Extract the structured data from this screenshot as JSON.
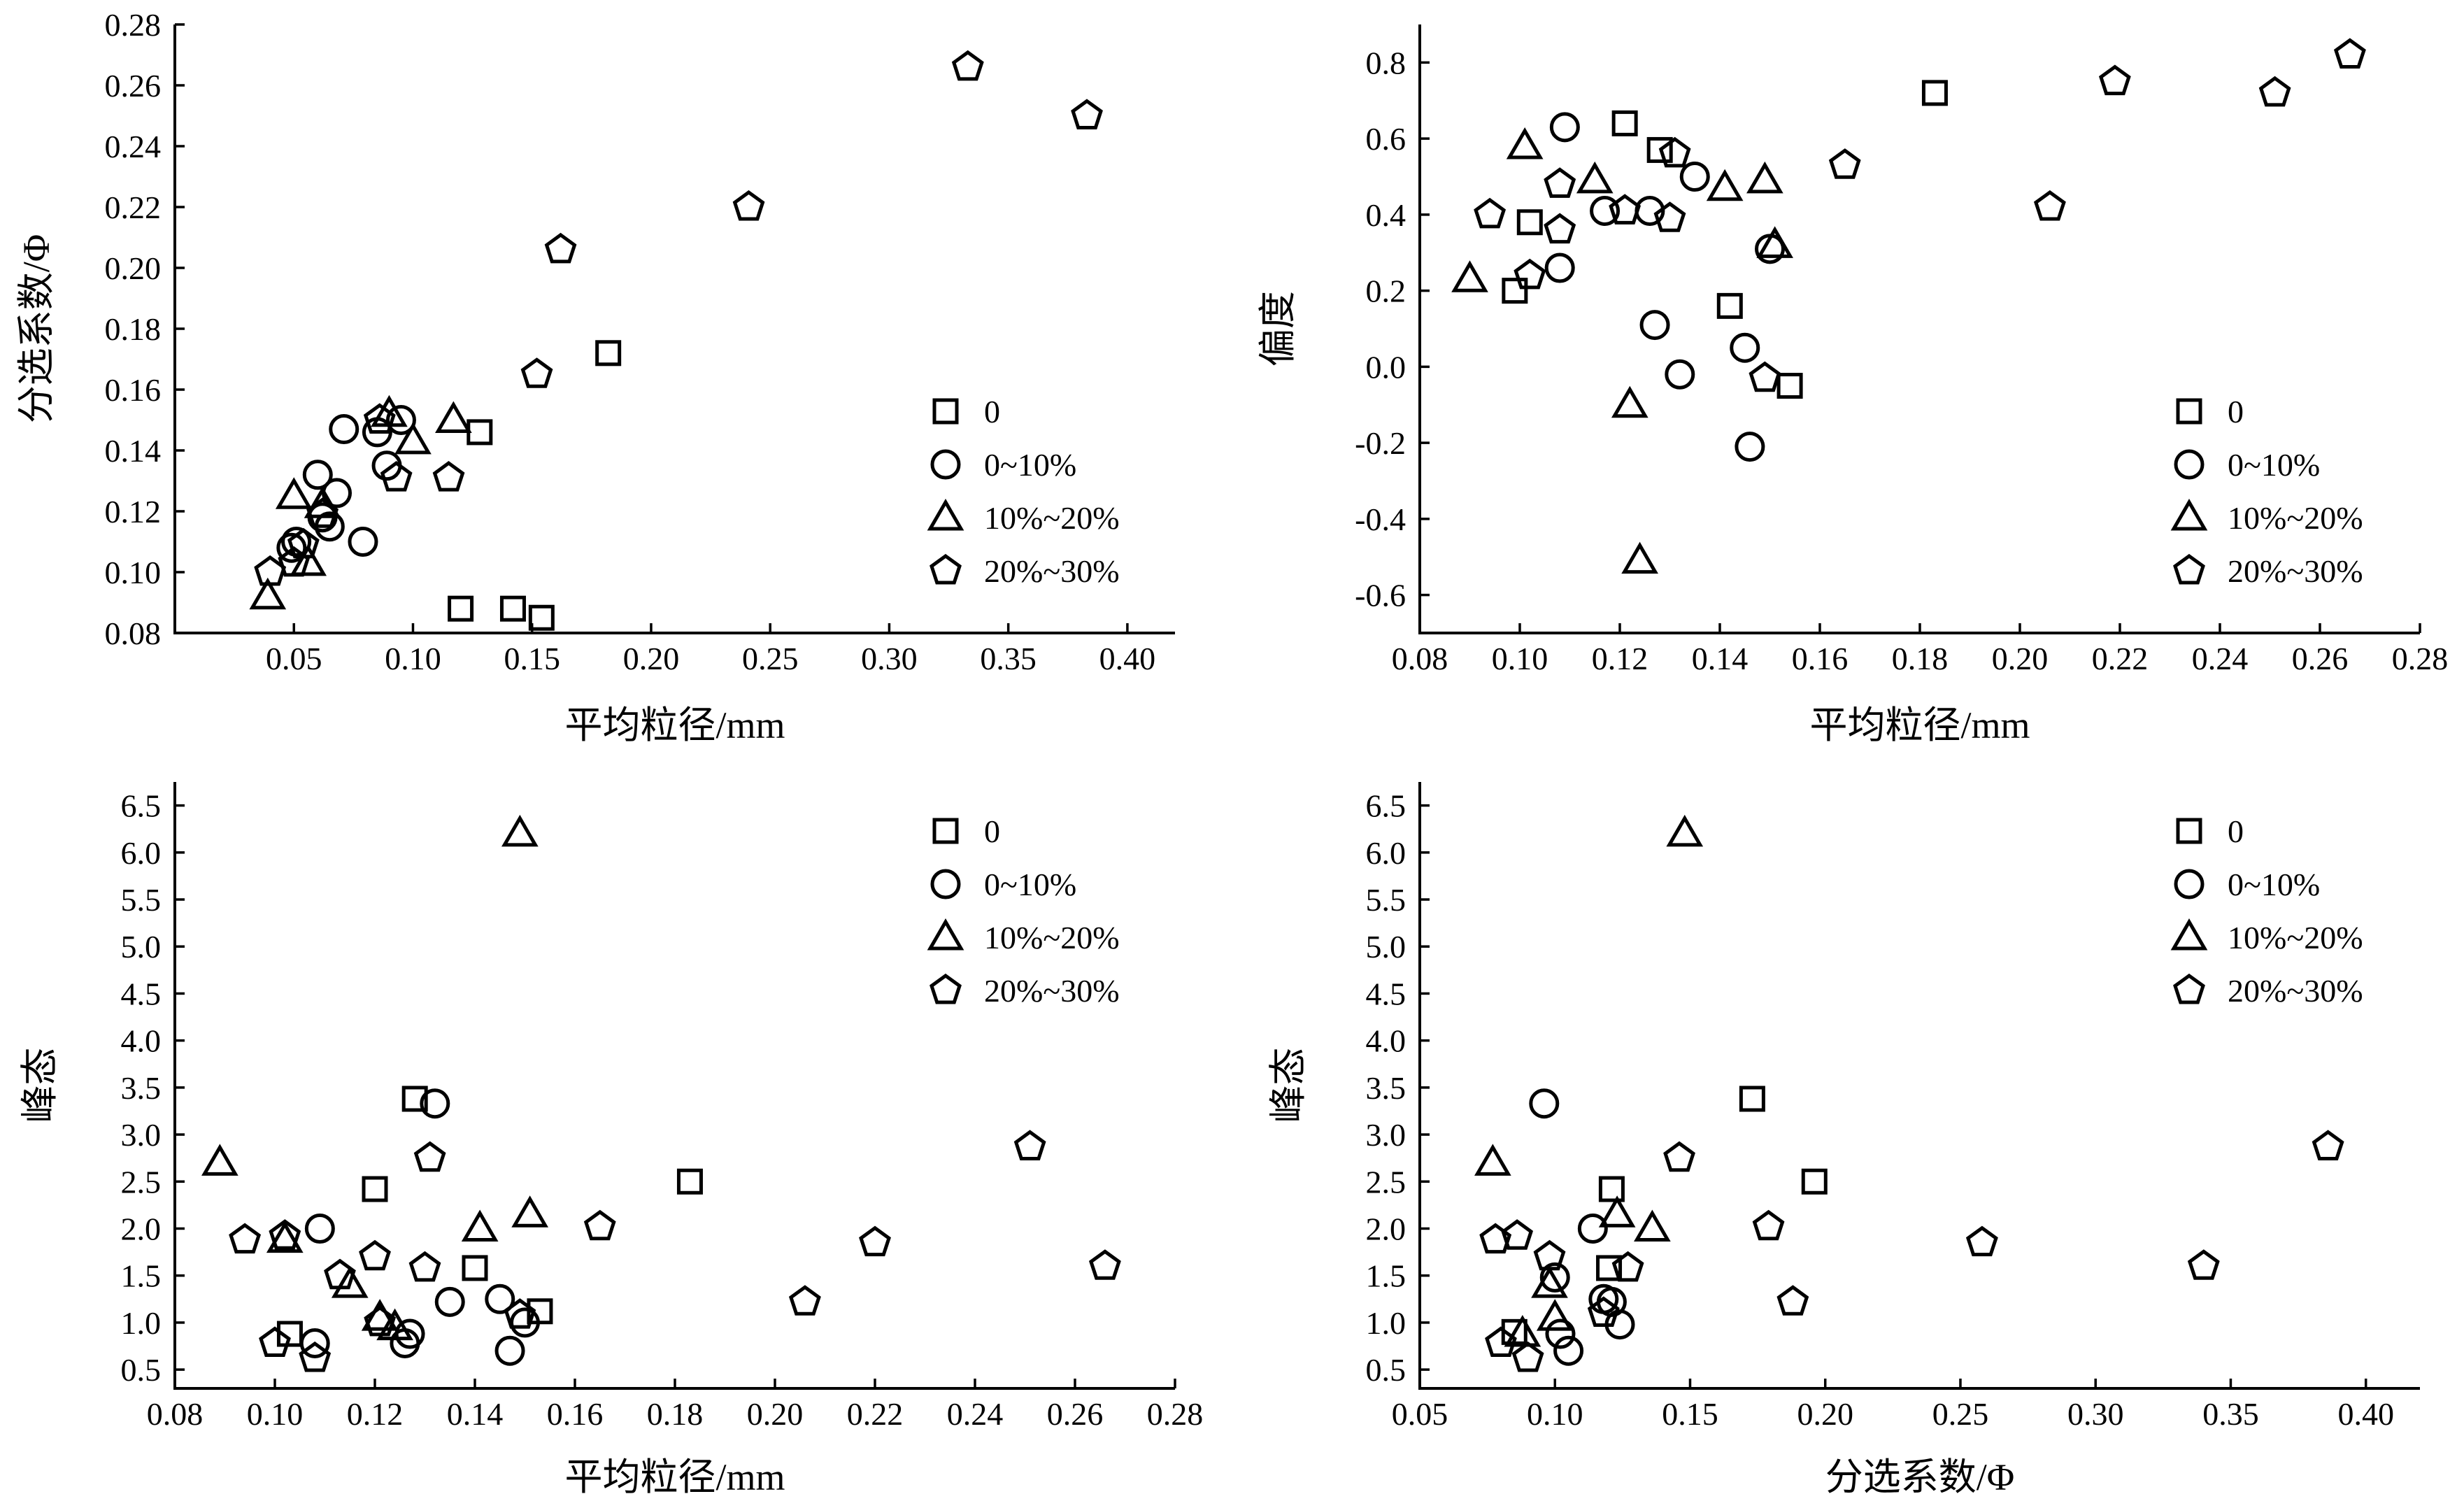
{
  "legend": [
    {
      "key": "s0",
      "label": "0",
      "marker": "square"
    },
    {
      "key": "s1",
      "label": "0~10%",
      "marker": "circle"
    },
    {
      "key": "s2",
      "label": "10%~20%",
      "marker": "triangle"
    },
    {
      "key": "s3",
      "label": "20%~30%",
      "marker": "pentagon"
    }
  ],
  "chart_data": [
    {
      "type": "scatter",
      "xlabel": "平均粒径/mm",
      "ylabel": "分选系数/Φ",
      "xlim": [
        0.0,
        0.42
      ],
      "ylim": [
        0.08,
        0.28
      ],
      "xticks": [
        "0.05",
        "0.10",
        "0.15",
        "0.20",
        "0.25",
        "0.30",
        "0.35",
        "0.40"
      ],
      "yticks": [
        "0.08",
        "0.10",
        "0.12",
        "0.14",
        "0.16",
        "0.18",
        "0.20",
        "0.22",
        "0.24",
        "0.26",
        "0.28"
      ],
      "legend_position": "right",
      "series": [
        {
          "key": "s0",
          "points": [
            [
              0.12,
              0.088
            ],
            [
              0.142,
              0.088
            ],
            [
              0.154,
              0.085
            ],
            [
              0.128,
              0.146
            ],
            [
              0.182,
              0.172
            ]
          ]
        },
        {
          "key": "s1",
          "points": [
            [
              0.049,
              0.108
            ],
            [
              0.051,
              0.11
            ],
            [
              0.06,
              0.132
            ],
            [
              0.062,
              0.118
            ],
            [
              0.065,
              0.115
            ],
            [
              0.068,
              0.126
            ],
            [
              0.071,
              0.147
            ],
            [
              0.079,
              0.11
            ],
            [
              0.085,
              0.146
            ],
            [
              0.089,
              0.135
            ],
            [
              0.095,
              0.15
            ]
          ]
        },
        {
          "key": "s2",
          "points": [
            [
              0.039,
              0.092
            ],
            [
              0.05,
              0.125
            ],
            [
              0.056,
              0.103
            ],
            [
              0.062,
              0.122
            ],
            [
              0.09,
              0.152
            ],
            [
              0.1,
              0.143
            ],
            [
              0.117,
              0.15
            ]
          ]
        },
        {
          "key": "s3",
          "points": [
            [
              0.04,
              0.1
            ],
            [
              0.05,
              0.103
            ],
            [
              0.054,
              0.109
            ],
            [
              0.062,
              0.119
            ],
            [
              0.086,
              0.15
            ],
            [
              0.093,
              0.131
            ],
            [
              0.115,
              0.131
            ],
            [
              0.152,
              0.165
            ],
            [
              0.162,
              0.206
            ],
            [
              0.241,
              0.22
            ],
            [
              0.333,
              0.266
            ],
            [
              0.383,
              0.25
            ]
          ]
        }
      ]
    },
    {
      "type": "scatter",
      "xlabel": "平均粒径/mm",
      "ylabel": "偏度",
      "xlim": [
        0.08,
        0.28
      ],
      "ylim": [
        -0.7,
        0.9
      ],
      "xticks": [
        "0.08",
        "0.10",
        "0.12",
        "0.14",
        "0.16",
        "0.18",
        "0.20",
        "0.22",
        "0.24",
        "0.26",
        "0.28"
      ],
      "yticks": [
        "-0.6",
        "-0.4",
        "-0.2",
        "0.0",
        "0.2",
        "0.4",
        "0.6",
        "0.8"
      ],
      "legend_position": "right",
      "series": [
        {
          "key": "s0",
          "points": [
            [
              0.099,
              0.2
            ],
            [
              0.102,
              0.38
            ],
            [
              0.121,
              0.64
            ],
            [
              0.128,
              0.57
            ],
            [
              0.142,
              0.16
            ],
            [
              0.154,
              -0.05
            ],
            [
              0.183,
              0.72
            ]
          ]
        },
        {
          "key": "s1",
          "points": [
            [
              0.108,
              0.26
            ],
            [
              0.109,
              0.63
            ],
            [
              0.117,
              0.41
            ],
            [
              0.126,
              0.41
            ],
            [
              0.127,
              0.11
            ],
            [
              0.132,
              -0.02
            ],
            [
              0.135,
              0.5
            ],
            [
              0.145,
              0.05
            ],
            [
              0.146,
              -0.21
            ],
            [
              0.15,
              0.31
            ]
          ]
        },
        {
          "key": "s2",
          "points": [
            [
              0.09,
              0.23
            ],
            [
              0.101,
              0.58
            ],
            [
              0.115,
              0.49
            ],
            [
              0.122,
              -0.1
            ],
            [
              0.124,
              -0.51
            ],
            [
              0.141,
              0.47
            ],
            [
              0.149,
              0.49
            ],
            [
              0.151,
              0.32
            ]
          ]
        },
        {
          "key": "s3",
          "points": [
            [
              0.094,
              0.4
            ],
            [
              0.102,
              0.24
            ],
            [
              0.108,
              0.48
            ],
            [
              0.108,
              0.36
            ],
            [
              0.121,
              0.41
            ],
            [
              0.13,
              0.39
            ],
            [
              0.131,
              0.56
            ],
            [
              0.149,
              -0.03
            ],
            [
              0.165,
              0.53
            ],
            [
              0.206,
              0.42
            ],
            [
              0.219,
              0.75
            ],
            [
              0.251,
              0.72
            ],
            [
              0.266,
              0.82
            ]
          ]
        }
      ]
    },
    {
      "type": "scatter",
      "xlabel": "平均粒径/mm",
      "ylabel": "峰态",
      "xlim": [
        0.08,
        0.28
      ],
      "ylim": [
        0.3,
        6.75
      ],
      "xticks": [
        "0.08",
        "0.10",
        "0.12",
        "0.14",
        "0.16",
        "0.18",
        "0.20",
        "0.22",
        "0.24",
        "0.26",
        "0.28"
      ],
      "yticks": [
        "0.5",
        "1.0",
        "1.5",
        "2.0",
        "2.5",
        "3.0",
        "3.5",
        "4.0",
        "4.5",
        "5.0",
        "5.5",
        "6.0",
        "6.5"
      ],
      "legend_position": "top-right",
      "series": [
        {
          "key": "s0",
          "points": [
            [
              0.103,
              0.88
            ],
            [
              0.12,
              2.42
            ],
            [
              0.128,
              3.38
            ],
            [
              0.14,
              1.58
            ],
            [
              0.153,
              1.12
            ],
            [
              0.183,
              2.5
            ]
          ]
        },
        {
          "key": "s1",
          "points": [
            [
              0.108,
              0.78
            ],
            [
              0.109,
              2.0
            ],
            [
              0.126,
              0.78
            ],
            [
              0.127,
              0.88
            ],
            [
              0.132,
              3.33
            ],
            [
              0.135,
              1.22
            ],
            [
              0.145,
              1.25
            ],
            [
              0.147,
              0.7
            ],
            [
              0.15,
              1.0
            ]
          ]
        },
        {
          "key": "s2",
          "points": [
            [
              0.089,
              2.7
            ],
            [
              0.102,
              1.88
            ],
            [
              0.115,
              1.4
            ],
            [
              0.121,
              1.05
            ],
            [
              0.124,
              0.95
            ],
            [
              0.141,
              2.0
            ],
            [
              0.149,
              6.2
            ],
            [
              0.151,
              2.15
            ]
          ]
        },
        {
          "key": "s3",
          "points": [
            [
              0.094,
              1.88
            ],
            [
              0.1,
              0.78
            ],
            [
              0.102,
              1.92
            ],
            [
              0.108,
              0.62
            ],
            [
              0.113,
              1.5
            ],
            [
              0.12,
              1.7
            ],
            [
              0.121,
              1.0
            ],
            [
              0.13,
              1.58
            ],
            [
              0.131,
              2.75
            ],
            [
              0.149,
              1.08
            ],
            [
              0.165,
              2.02
            ],
            [
              0.206,
              1.22
            ],
            [
              0.22,
              1.85
            ],
            [
              0.251,
              2.87
            ],
            [
              0.266,
              1.6
            ]
          ]
        }
      ]
    },
    {
      "type": "scatter",
      "xlabel": "分选系数/Φ",
      "ylabel": "峰态",
      "xlim": [
        0.05,
        0.42
      ],
      "ylim": [
        0.3,
        6.75
      ],
      "xticks": [
        "0.05",
        "0.10",
        "0.15",
        "0.20",
        "0.25",
        "0.30",
        "0.35",
        "0.40"
      ],
      "yticks": [
        "0.5",
        "1.0",
        "1.5",
        "2.0",
        "2.5",
        "3.0",
        "3.5",
        "4.0",
        "4.5",
        "5.0",
        "5.5",
        "6.0",
        "6.5"
      ],
      "legend_position": "top-right",
      "series": [
        {
          "key": "s0",
          "points": [
            [
              0.085,
              0.9
            ],
            [
              0.12,
              1.58
            ],
            [
              0.121,
              2.42
            ],
            [
              0.173,
              3.38
            ],
            [
              0.196,
              2.5
            ]
          ]
        },
        {
          "key": "s1",
          "points": [
            [
              0.096,
              3.33
            ],
            [
              0.1,
              1.48
            ],
            [
              0.105,
              0.7
            ],
            [
              0.114,
              2.0
            ],
            [
              0.118,
              1.25
            ],
            [
              0.121,
              1.22
            ],
            [
              0.124,
              0.98
            ],
            [
              0.102,
              0.88
            ]
          ]
        },
        {
          "key": "s2",
          "points": [
            [
              0.077,
              2.7
            ],
            [
              0.088,
              0.88
            ],
            [
              0.098,
              1.4
            ],
            [
              0.1,
              1.05
            ],
            [
              0.123,
              2.15
            ],
            [
              0.136,
              2.0
            ],
            [
              0.148,
              6.2
            ]
          ]
        },
        {
          "key": "s3",
          "points": [
            [
              0.078,
              1.88
            ],
            [
              0.08,
              0.78
            ],
            [
              0.086,
              1.92
            ],
            [
              0.09,
              0.62
            ],
            [
              0.098,
              1.7
            ],
            [
              0.118,
              1.1
            ],
            [
              0.127,
              1.58
            ],
            [
              0.146,
              2.75
            ],
            [
              0.179,
              2.02
            ],
            [
              0.188,
              1.22
            ],
            [
              0.258,
              1.85
            ],
            [
              0.34,
              1.6
            ],
            [
              0.386,
              2.87
            ]
          ]
        }
      ]
    }
  ]
}
